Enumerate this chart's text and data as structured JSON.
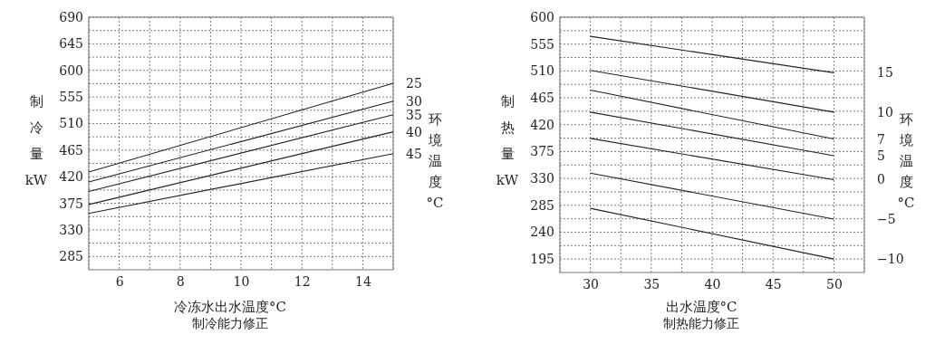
{
  "chart_data": [
    {
      "type": "line",
      "xlabel": "冷冻水出水温度°C",
      "ylabel": "制冷量kW",
      "legend_title": "环境温度°C",
      "annotations": [
        "制冷能力修正"
      ],
      "xlim": [
        5,
        15
      ],
      "ylim": [
        262.5,
        690
      ],
      "xticks": [
        {
          "value": 5,
          "label": null
        },
        6,
        {
          "value": 7,
          "label": null
        },
        8,
        {
          "value": 9,
          "label": null
        },
        10,
        {
          "value": 11,
          "label": null
        },
        12,
        {
          "value": 13,
          "label": null
        },
        14,
        {
          "value": 15,
          "label": null
        }
      ],
      "yticks": [
        285,
        {
          "value": 307.5,
          "label": null
        },
        330,
        {
          "value": 352.5,
          "label": null
        },
        375,
        {
          "value": 397.5,
          "label": null
        },
        420,
        {
          "value": 442.5,
          "label": null
        },
        465,
        {
          "value": 487.5,
          "label": null
        },
        510,
        {
          "value": 532.5,
          "label": null
        },
        555,
        {
          "value": 577.5,
          "label": null
        },
        600,
        {
          "value": 622.5,
          "label": null
        },
        645,
        {
          "value": 667.5,
          "label": null
        },
        690
      ],
      "grid": true,
      "x": [
        5,
        15
      ],
      "series": [
        {
          "name": "25",
          "color": "#222222",
          "values": [
            428,
            578
          ]
        },
        {
          "name": "30",
          "color": "#222222",
          "values": [
            411,
            548
          ]
        },
        {
          "name": "35",
          "color": "#222222",
          "values": [
            395,
            525
          ]
        },
        {
          "name": "40",
          "color": "#222222",
          "values": [
            373,
            496
          ]
        },
        {
          "name": "45",
          "color": "#222222",
          "values": [
            358,
            459
          ]
        }
      ]
    },
    {
      "type": "line",
      "xlabel": "出水温度°C",
      "ylabel": "制热量kW",
      "legend_title": "环境温度°C",
      "annotations": [
        "制热能力修正"
      ],
      "xlim": [
        27.5,
        52.5
      ],
      "ylim": [
        172.5,
        600
      ],
      "xticks": [
        {
          "value": 27.5,
          "label": null
        },
        30,
        {
          "value": 32.5,
          "label": null
        },
        35,
        {
          "value": 37.5,
          "label": null
        },
        40,
        {
          "value": 42.5,
          "label": null
        },
        45,
        {
          "value": 47.5,
          "label": null
        },
        50,
        {
          "value": 52.5,
          "label": null
        }
      ],
      "yticks": [
        195,
        {
          "value": 217.5,
          "label": null
        },
        240,
        {
          "value": 262.5,
          "label": null
        },
        285,
        {
          "value": 307.5,
          "label": null
        },
        330,
        {
          "value": 352.5,
          "label": null
        },
        375,
        {
          "value": 397.5,
          "label": null
        },
        420,
        {
          "value": 442.5,
          "label": null
        },
        465,
        {
          "value": 487.5,
          "label": null
        },
        510,
        {
          "value": 532.5,
          "label": null
        },
        555,
        {
          "value": 577.5,
          "label": null
        },
        600
      ],
      "grid": true,
      "x": [
        30,
        50
      ],
      "series": [
        {
          "name": "15",
          "color": "#222222",
          "values": [
            568,
            507
          ]
        },
        {
          "name": "10",
          "color": "#222222",
          "values": [
            511,
            441
          ]
        },
        {
          "name": "7",
          "color": "#222222",
          "values": [
            478,
            396
          ]
        },
        {
          "name": "5",
          "color": "#222222",
          "values": [
            441,
            368
          ]
        },
        {
          "name": "0",
          "color": "#222222",
          "values": [
            397,
            328
          ]
        },
        {
          "name": "−5",
          "color": "#222222",
          "values": [
            339,
            262
          ]
        },
        {
          "name": "−10",
          "color": "#222222",
          "values": [
            280,
            195
          ]
        }
      ]
    }
  ]
}
